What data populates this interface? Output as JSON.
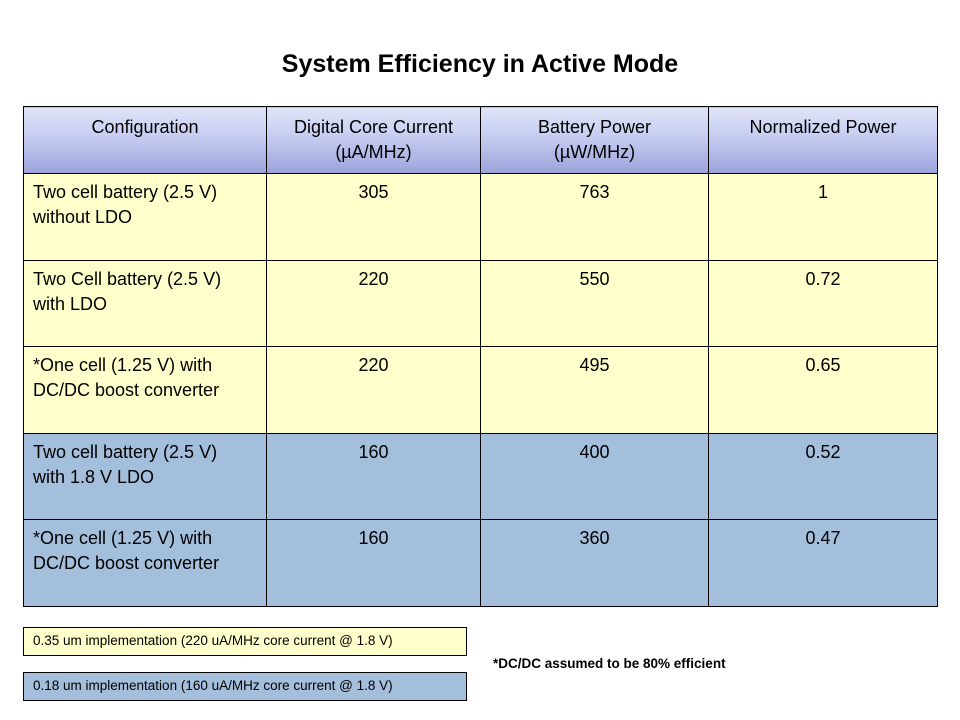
{
  "title": "System Efficiency in Active Mode",
  "table": {
    "headers": [
      {
        "line1": "Configuration",
        "line2": ""
      },
      {
        "line1": "Digital Core Current",
        "line2": "(µA/MHz)"
      },
      {
        "line1": "Battery Power",
        "line2": "(µW/MHz)"
      },
      {
        "line1": "Normalized  Power",
        "line2": ""
      }
    ],
    "rows": [
      {
        "config_line1": "Two cell battery (2.5 V)",
        "config_line2": "without LDO",
        "core_current": "305",
        "battery_power": "763",
        "normalized_power": "1",
        "color": "#ffffcc"
      },
      {
        "config_line1": "Two Cell battery (2.5 V)",
        "config_line2": "with LDO",
        "core_current": "220",
        "battery_power": "550",
        "normalized_power": "0.72",
        "color": "#ffffcc"
      },
      {
        "config_line1": "*One cell (1.25 V) with",
        "config_line2": "DC/DC boost converter",
        "core_current": "220",
        "battery_power": "495",
        "normalized_power": "0.65",
        "color": "#ffffcc"
      },
      {
        "config_line1": "Two cell battery (2.5 V)",
        "config_line2": "with 1.8 V LDO",
        "core_current": "160",
        "battery_power": "400",
        "normalized_power": "0.52",
        "color": "#a3bfdc"
      },
      {
        "config_line1": "*One cell (1.25 V) with",
        "config_line2": "DC/DC boost converter",
        "core_current": "160",
        "battery_power": "360",
        "normalized_power": "0.47",
        "color": "#a3bfdc"
      }
    ]
  },
  "legend": {
    "yellow_note": "0.35 um implementation (220 uA/MHz core current @ 1.8 V)",
    "blue_note": "0.18 um implementation (160 uA/MHz core current @ 1.8 V)",
    "yellow_color": "#ffffcc",
    "blue_color": "#a3bfdc"
  },
  "footnote": "*DC/DC assumed to be 80% efficient"
}
